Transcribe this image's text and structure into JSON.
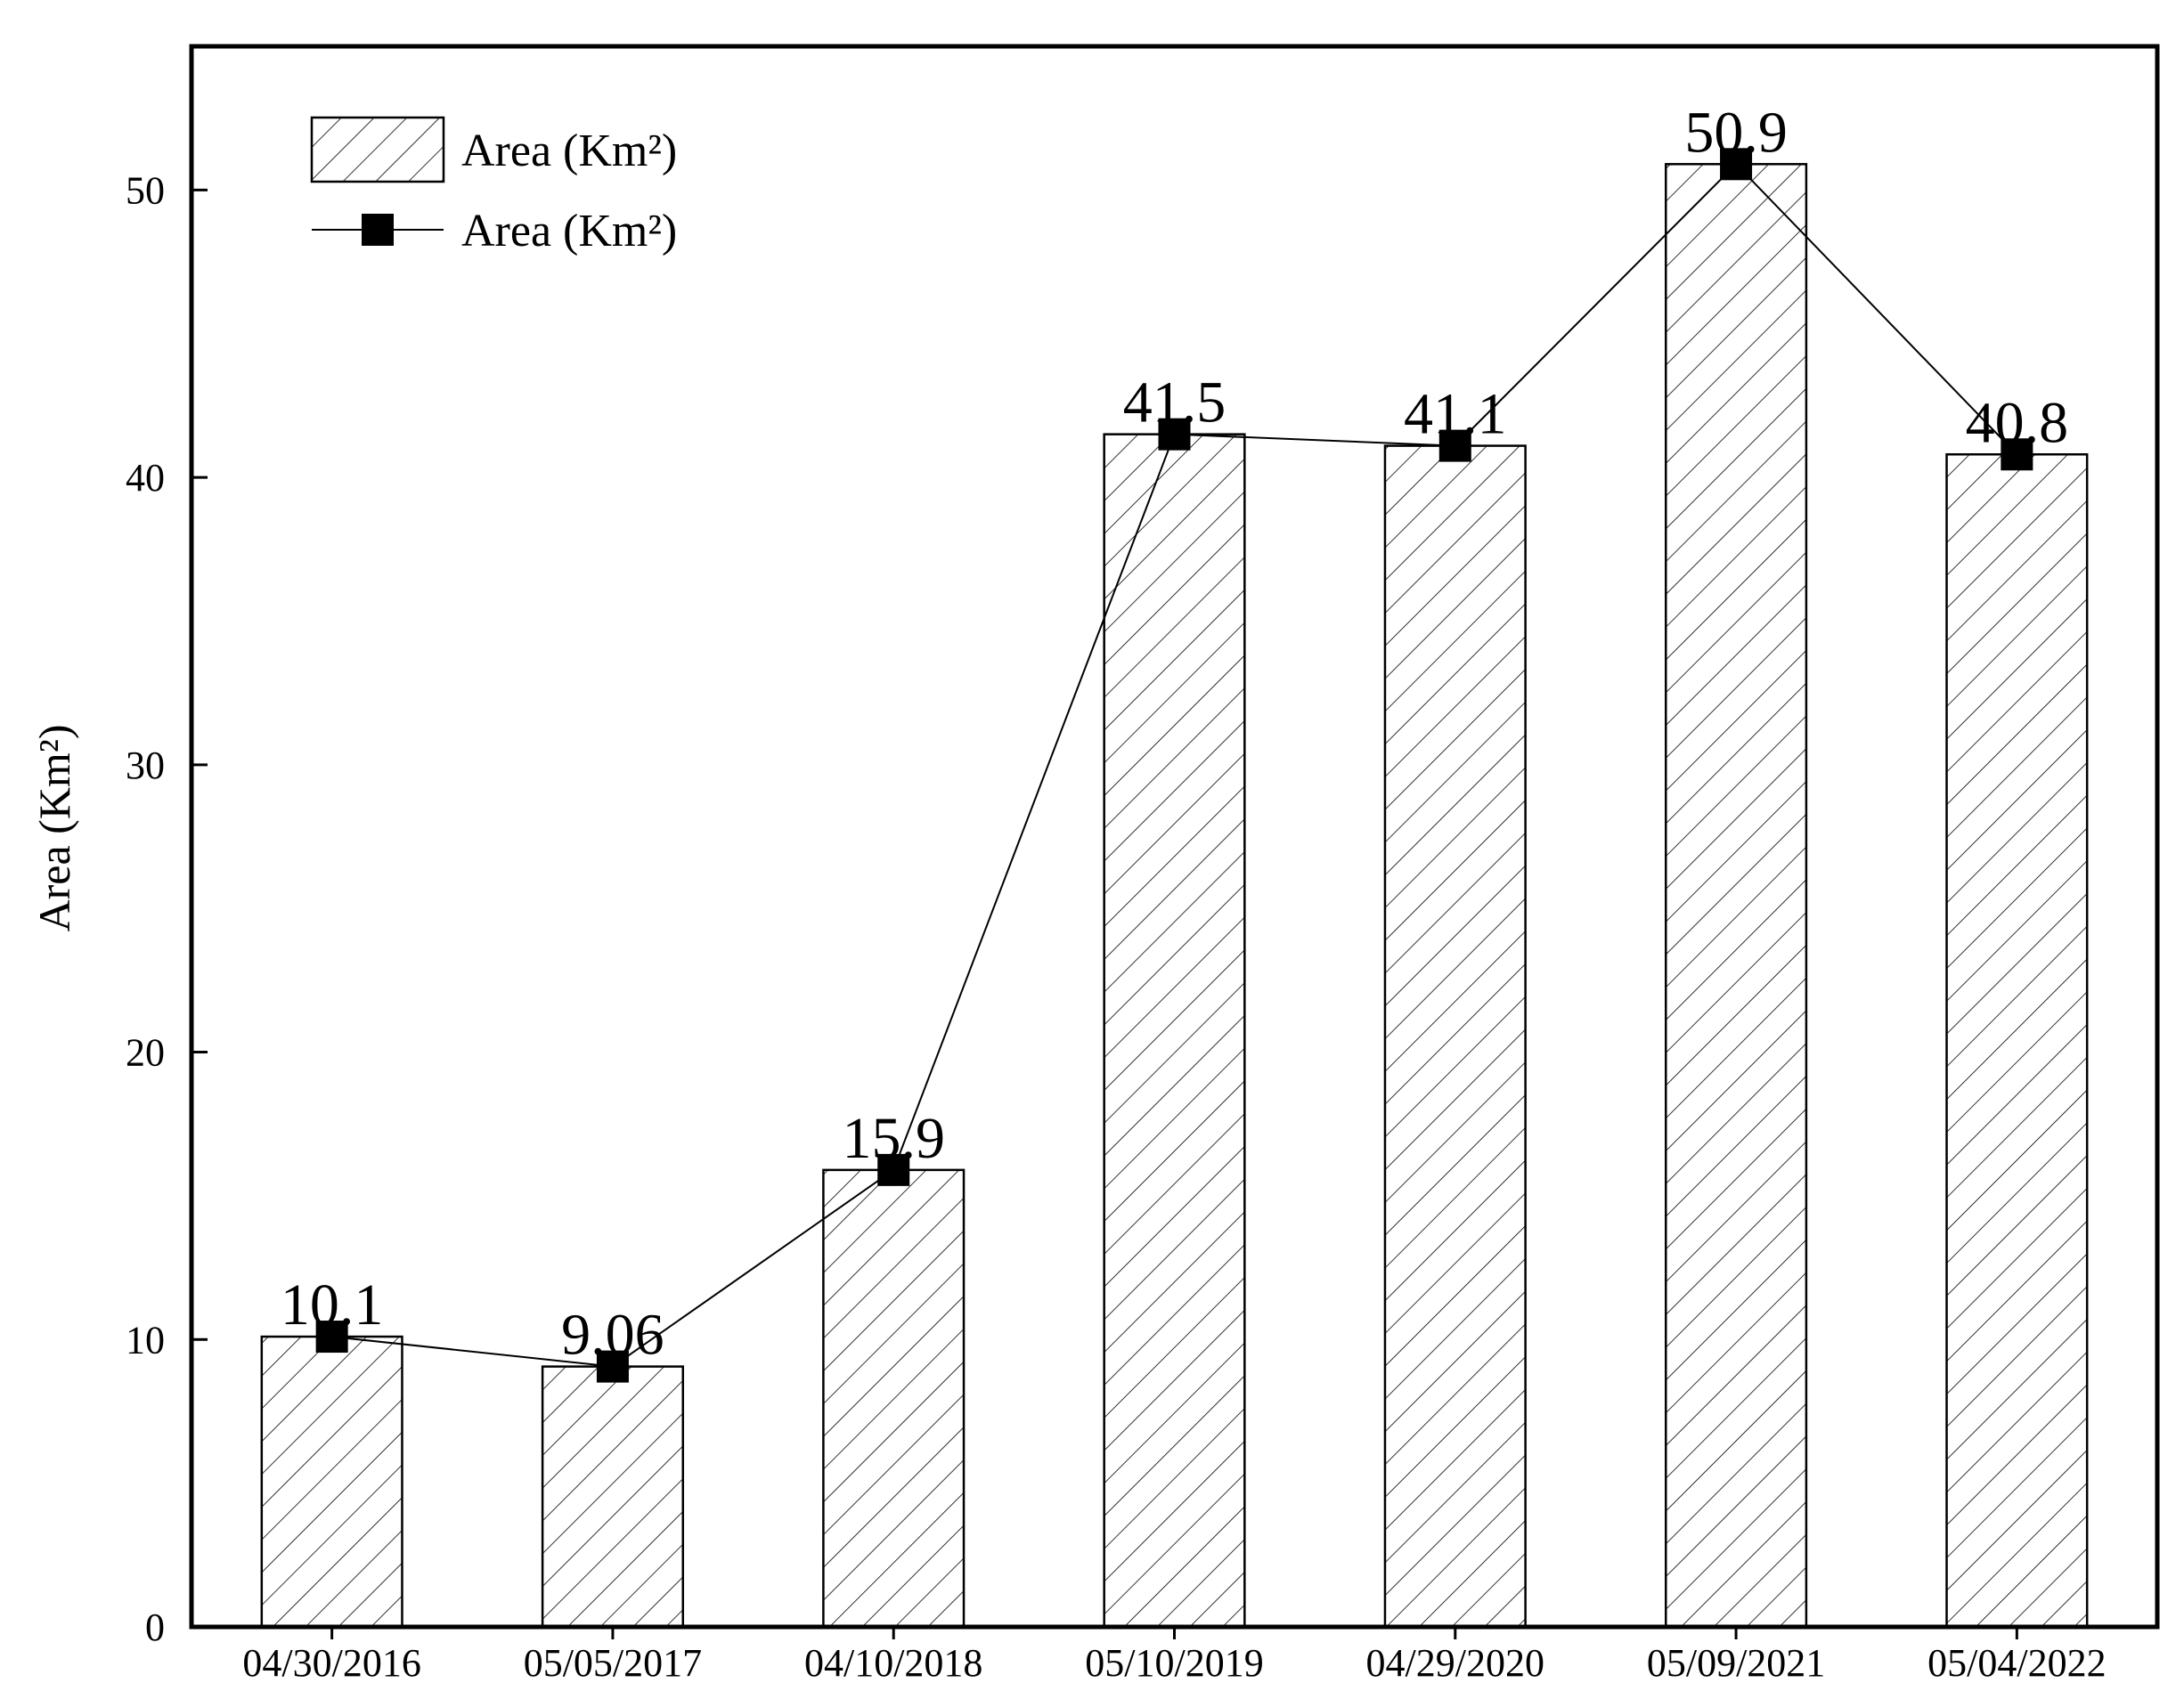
{
  "chart_data": {
    "type": "bar",
    "categories": [
      "04/30/2016",
      "05/05/2017",
      "04/10/2018",
      "05/10/2019",
      "04/29/2020",
      "05/09/2021",
      "05/04/2022"
    ],
    "series": [
      {
        "name": "Area (Km²)",
        "kind": "bar",
        "pattern": "hatched",
        "values": [
          10.1,
          9.06,
          15.9,
          41.5,
          41.1,
          50.9,
          40.8
        ]
      },
      {
        "name": "Area (Km²)",
        "kind": "line",
        "marker": "square",
        "values": [
          10.1,
          9.06,
          15.9,
          41.5,
          41.1,
          50.9,
          40.8
        ]
      }
    ],
    "data_labels": [
      "10.1",
      "9.06",
      "15.9",
      "41.5",
      "41.1",
      "50.9",
      "40.8"
    ],
    "xlabel": "",
    "ylabel": "Area (Km²)",
    "ylim": [
      0,
      55
    ],
    "yticks": [
      0,
      10,
      20,
      30,
      40,
      50
    ],
    "grid": false,
    "legend_position": "top-left",
    "colors": {
      "bar_fill": "#ffffff",
      "bar_stroke": "#000000",
      "hatch": "#000000",
      "line": "#000000",
      "marker": "#000000"
    }
  }
}
